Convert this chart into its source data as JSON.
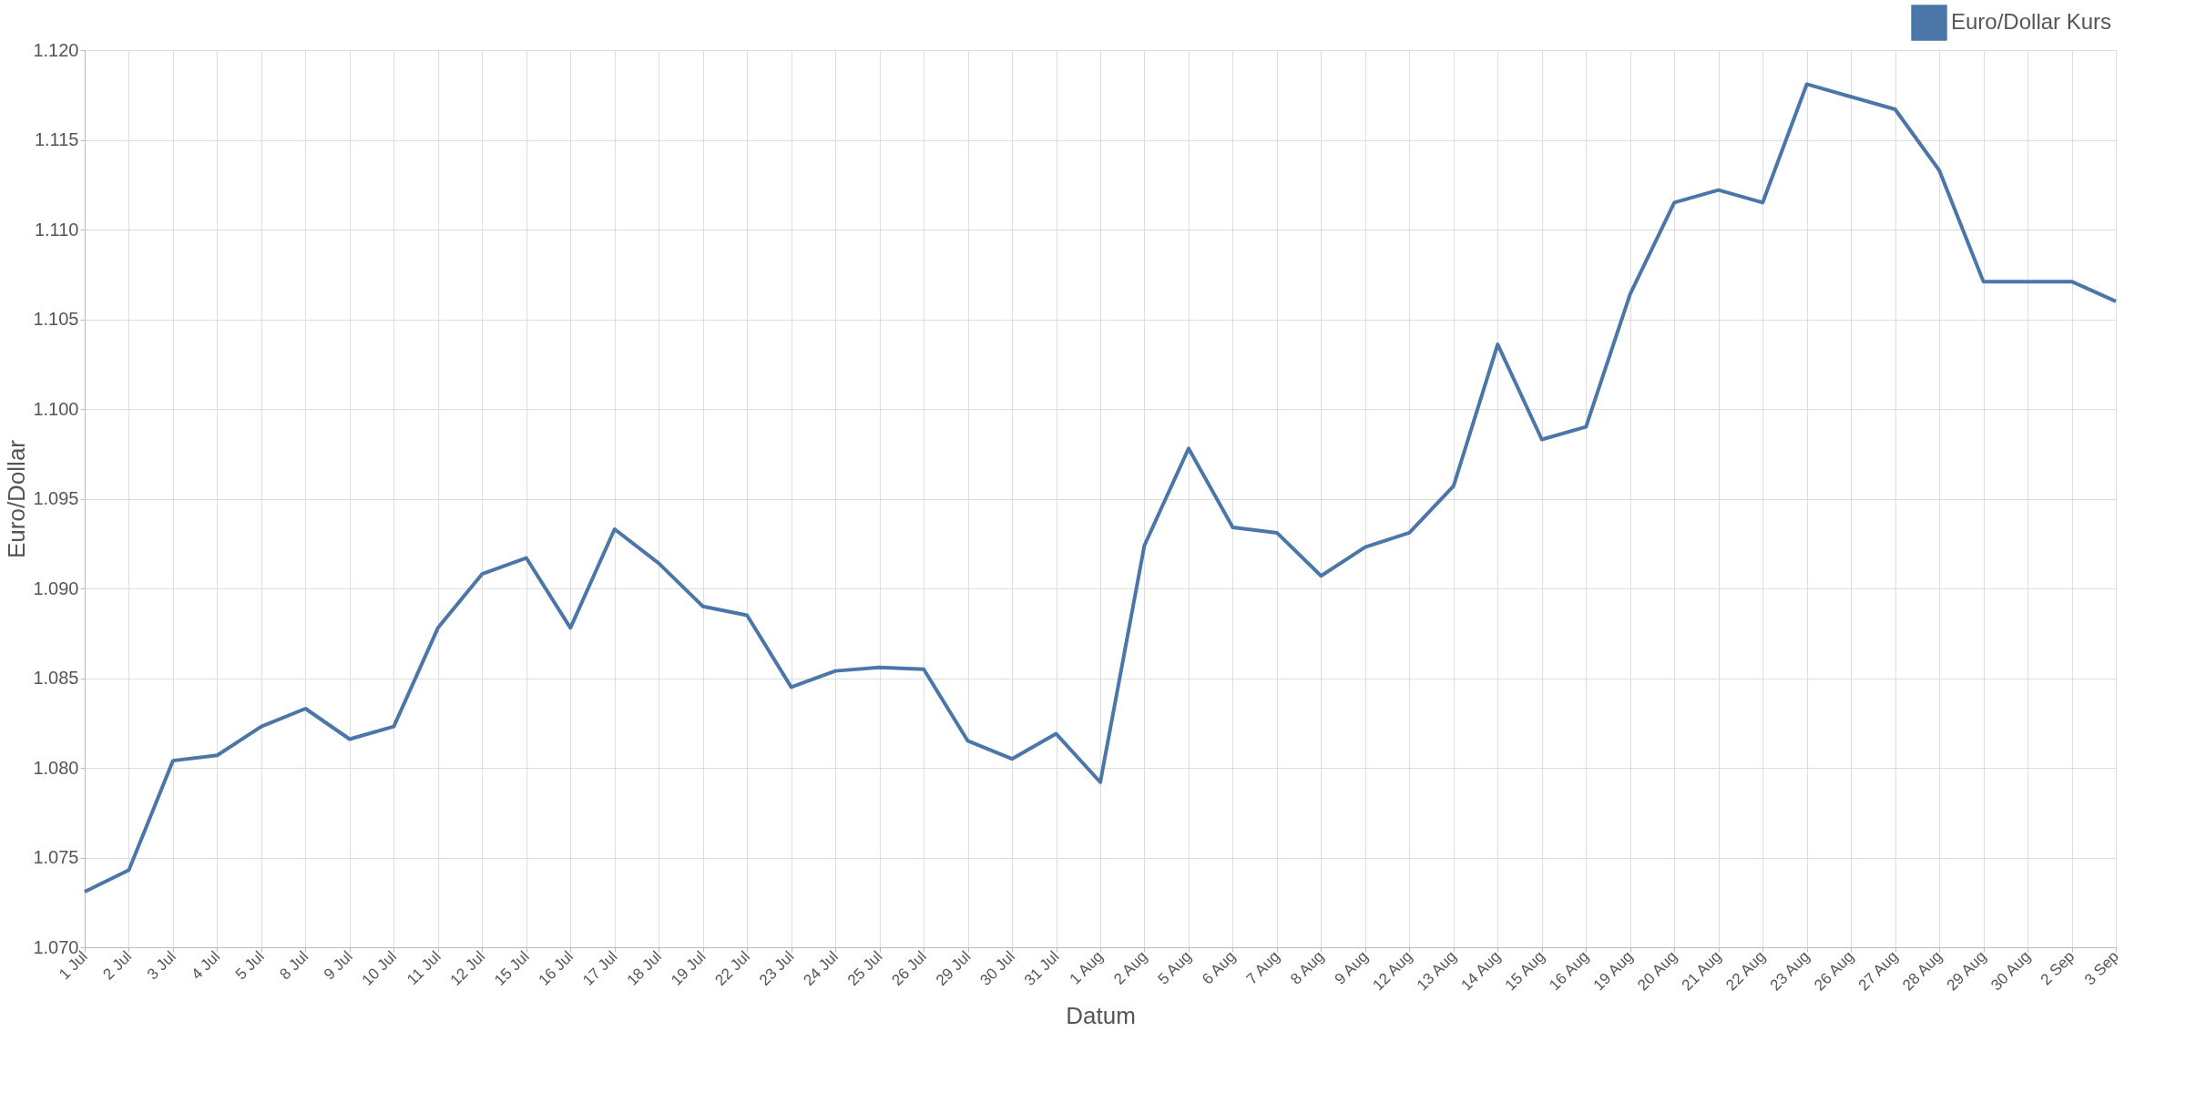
{
  "chart_data": {
    "type": "line",
    "xlabel": "Datum",
    "ylabel": "Euro/Dollar",
    "categories": [
      "1 Jul",
      "2 Jul",
      "3 Jul",
      "4 Jul",
      "5 Jul",
      "8 Jul",
      "9 Jul",
      "10 Jul",
      "11 Jul",
      "12 Jul",
      "15 Jul",
      "16 Jul",
      "17 Jul",
      "18 Jul",
      "19 Jul",
      "22 Jul",
      "23 Jul",
      "24 Jul",
      "25 Jul",
      "26 Jul",
      "29 Jul",
      "30 Jul",
      "31 Jul",
      "1 Aug",
      "2 Aug",
      "5 Aug",
      "6 Aug",
      "7 Aug",
      "8 Aug",
      "9 Aug",
      "12 Aug",
      "13 Aug",
      "14 Aug",
      "15 Aug",
      "16 Aug",
      "19 Aug",
      "20 Aug",
      "21 Aug",
      "22 Aug",
      "23 Aug",
      "26 Aug",
      "27 Aug",
      "28 Aug",
      "29 Aug",
      "30 Aug",
      "2 Sep",
      "3 Sep"
    ],
    "series": [
      {
        "name": "Euro/Dollar Kurs",
        "color": "#4a76a8",
        "values": [
          1.0731,
          1.0743,
          1.0804,
          1.0807,
          1.0823,
          1.0833,
          1.0816,
          1.0823,
          1.0878,
          1.0908,
          1.0917,
          1.0878,
          1.0933,
          1.0914,
          1.089,
          1.0885,
          1.0845,
          1.0854,
          1.0856,
          1.0855,
          1.0815,
          1.0805,
          1.0819,
          1.0792,
          1.0924,
          1.0978,
          1.0934,
          1.0931,
          1.0907,
          1.0923,
          1.0931,
          1.0957,
          1.1036,
          1.0983,
          1.099,
          1.1064,
          1.1115,
          1.1122,
          1.1115,
          1.1181,
          1.1174,
          1.1167,
          1.1133,
          1.1071,
          1.1071,
          1.1071,
          1.106
        ]
      }
    ],
    "ylim": [
      1.07,
      1.12
    ],
    "yticks": [
      {
        "value": 1.07,
        "label": "1.070"
      },
      {
        "value": 1.075,
        "label": "1.075"
      },
      {
        "value": 1.08,
        "label": "1.080"
      },
      {
        "value": 1.085,
        "label": "1.085"
      },
      {
        "value": 1.09,
        "label": "1.090"
      },
      {
        "value": 1.095,
        "label": "1.095"
      },
      {
        "value": 1.1,
        "label": "1.100"
      },
      {
        "value": 1.105,
        "label": "1.105"
      },
      {
        "value": 1.11,
        "label": "1.110"
      },
      {
        "value": 1.115,
        "label": "1.115"
      },
      {
        "value": 1.12,
        "label": "1.120"
      }
    ],
    "grid": true,
    "legend": "top right",
    "marker": "none",
    "line_style": "solid"
  }
}
